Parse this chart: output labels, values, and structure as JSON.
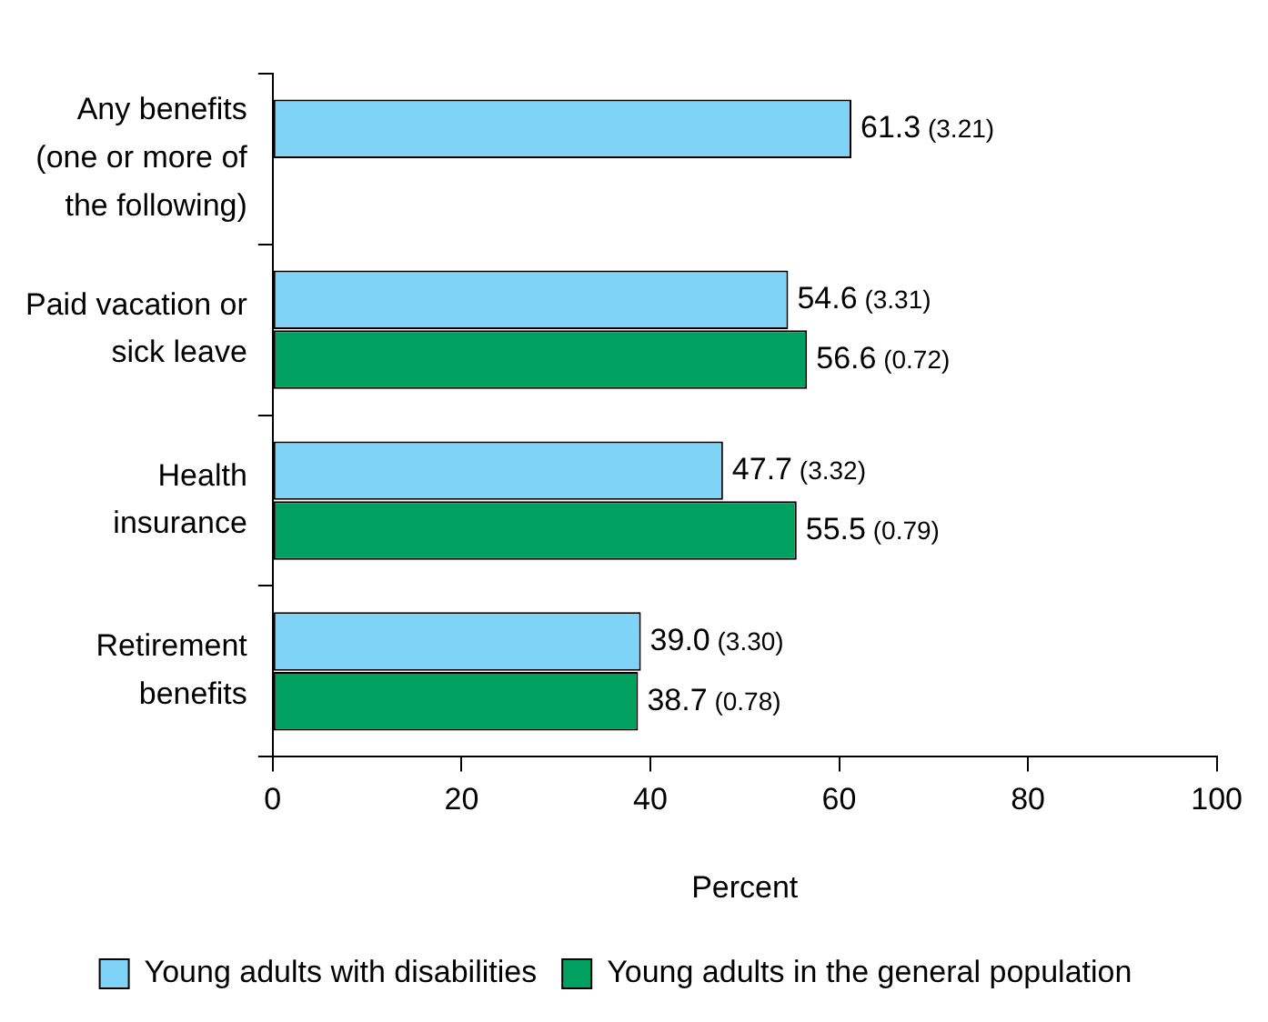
{
  "chart_data": {
    "type": "bar",
    "orientation": "horizontal",
    "xlabel": "Percent",
    "categories": [
      "Any benefits\n(one or more of\nthe following)",
      "Paid vacation or\nsick leave",
      "Health\ninsurance",
      "Retirement\nbenefits"
    ],
    "series": [
      {
        "name": "Young adults with disabilities",
        "color": "#7fd3f7",
        "values": [
          61.3,
          54.6,
          47.7,
          39.0
        ],
        "value_labels": [
          "61.3 (3.21)",
          "54.6 (3.31)",
          "47.7 (3.32)",
          "39.0 (3.30)"
        ]
      },
      {
        "name": "Young adults in the general population",
        "color": "#00a060",
        "values": [
          null,
          56.6,
          55.5,
          38.7
        ],
        "value_labels": [
          null,
          "56.6 (0.72)",
          "55.5 (0.79)",
          "38.7 (0.78)"
        ]
      }
    ],
    "xlim": [
      0,
      100
    ],
    "xticks": [
      0,
      20,
      40,
      60,
      80,
      100
    ],
    "grid": false,
    "legend": "bottom"
  }
}
